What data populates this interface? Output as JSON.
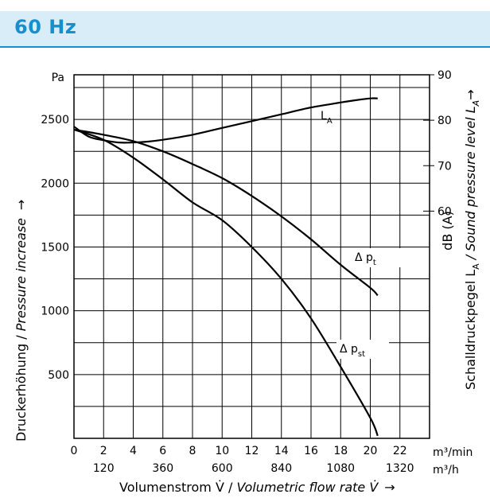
{
  "header": {
    "title": "60 Hz",
    "accent_color": "#1590cf",
    "background_color": "#d9edf8"
  },
  "chart_data": {
    "type": "line",
    "x_unit_primary": "m³/min",
    "x_unit_secondary": "m³/h",
    "x_ticks": [
      "0",
      "2",
      "4",
      "6",
      "8",
      "10",
      "12",
      "14",
      "16",
      "18",
      "20",
      "22"
    ],
    "x_ticks_secondary": [
      "120",
      "360",
      "600",
      "840",
      "1080",
      "1320"
    ],
    "xlim": [
      0,
      24
    ],
    "xlabel_de": "Volumenstrom V̇ / ",
    "xlabel_en": "Volumetric flow rate V̇",
    "xlabel_arrow": "→",
    "y_left_unit": "Pa",
    "y_left_ticks": [
      "2500",
      "2000",
      "1500",
      "1000",
      "500"
    ],
    "ylim_left": [
      0,
      2850
    ],
    "ylabel_left_de": "Druckerhöhung / ",
    "ylabel_left_en": "Pressure increase",
    "ylabel_left_arrow": "→",
    "y_right_ticks": [
      "90",
      "80",
      "70",
      "60"
    ],
    "ylim_right": [
      10,
      90
    ],
    "ylabel_right_unit": "dB (A)",
    "ylabel_right_de": "Schalldruckpegel L",
    "ylabel_right_sub": "A",
    "ylabel_right_en": " / Sound pressure level L",
    "ylabel_right_en_sub": "A",
    "ylabel_right_arrow": "→",
    "grid": true,
    "series": [
      {
        "name": "LA",
        "label_main": "L",
        "label_sub": "A",
        "axis": "right",
        "x": [
          0,
          1,
          2,
          3,
          4,
          5,
          6,
          8,
          10,
          12,
          14,
          16,
          18,
          19,
          20,
          20.5
        ],
        "y": [
          78.6,
          76.4,
          75.6,
          75.1,
          75.1,
          75.3,
          75.7,
          76.8,
          78.3,
          79.8,
          81.3,
          82.8,
          83.9,
          84.4,
          84.8,
          84.8
        ]
      },
      {
        "name": "Δpt",
        "label_main": "Δ p",
        "label_sub": "t",
        "axis": "left",
        "x": [
          0,
          2,
          4,
          6,
          8,
          10,
          12,
          14,
          16,
          18,
          20,
          20.5
        ],
        "y": [
          2420,
          2380,
          2330,
          2250,
          2150,
          2040,
          1900,
          1740,
          1560,
          1360,
          1180,
          1120
        ]
      },
      {
        "name": "Δpst",
        "label_main": "Δ p",
        "label_sub": "st",
        "axis": "left",
        "x": [
          0,
          2,
          4,
          6,
          8,
          10,
          12,
          14,
          16,
          18,
          20,
          20.5
        ],
        "y": [
          2420,
          2340,
          2200,
          2030,
          1850,
          1710,
          1500,
          1250,
          940,
          560,
          160,
          20
        ]
      }
    ]
  }
}
